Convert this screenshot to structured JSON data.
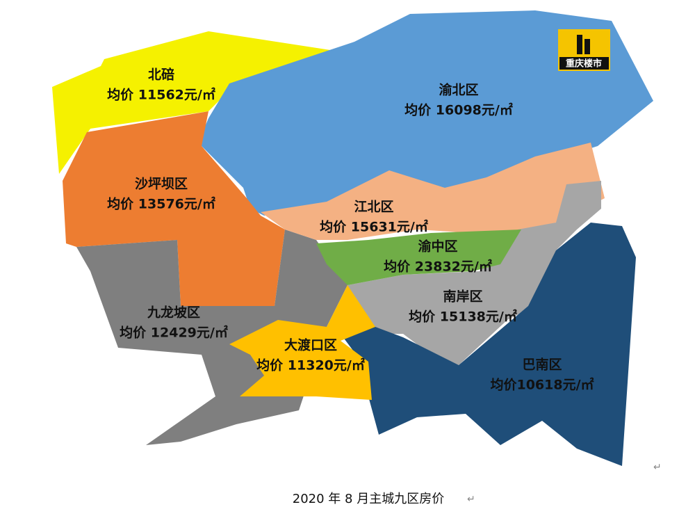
{
  "logo": "重庆楼市",
  "regions": [
    {
      "name": "北碚",
      "price": "均价 11562元/㎡"
    },
    {
      "name": "渝北区",
      "price": "均价 16098元/㎡"
    },
    {
      "name": "沙坪坝区",
      "price": "均价 13576元/㎡"
    },
    {
      "name": "江北区",
      "price": "均价 15631元/㎡"
    },
    {
      "name": "渝中区",
      "price": "均价 23832元/㎡"
    },
    {
      "name": "南岸区",
      "price": "均价 15138元/㎡"
    },
    {
      "name": "九龙坡区",
      "price": "均价 12429元/㎡"
    },
    {
      "name": "大渡口区",
      "price": "均价 11320元/㎡"
    },
    {
      "name": "巴南区",
      "price": "均价10618元/㎡"
    }
  ],
  "caption": "2020 年 8 月主城九区房价",
  "paragraph_mark": "↵"
}
